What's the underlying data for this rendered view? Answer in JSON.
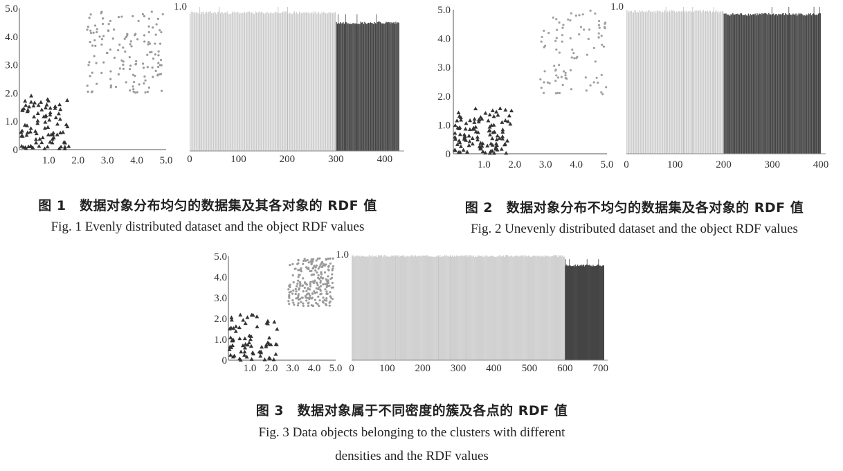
{
  "figures": [
    {
      "id": "fig1",
      "caption_cn": "图 1　数据对象分布均匀的数据集及其各对象的 RDF 值",
      "caption_en": "Fig. 1 Evenly distributed dataset and the object RDF values"
    },
    {
      "id": "fig2",
      "caption_cn": "图 2　数据对象分布不均匀的数据集及各对象的 RDF 值",
      "caption_en": "Fig. 2 Unevenly distributed dataset and the object RDF values"
    },
    {
      "id": "fig3",
      "caption_cn": "图 3　数据对象属于不同密度的簇及各点的 RDF 值",
      "caption_en_line1": "Fig. 3 Data objects belonging to the clusters with different",
      "caption_en_line2": "densities and the RDF values"
    }
  ],
  "chart_data": [
    {
      "figure": "fig1",
      "type": "scatter",
      "xlim": [
        0,
        5.0
      ],
      "ylim": [
        0,
        5.0
      ],
      "xticks": [
        "1.0",
        "2.0",
        "3.0",
        "4.0",
        "5.0"
      ],
      "yticks": [
        "0",
        "1.0",
        "2.0",
        "3.0",
        "4.0",
        "5.0"
      ],
      "clusters": [
        {
          "marker": "triangle",
          "color": "#333333",
          "count": 90,
          "x_range": [
            0.05,
            1.7
          ],
          "y_range": [
            0.0,
            1.95
          ]
        },
        {
          "marker": "dot",
          "color": "#9a9a9a",
          "count": 140,
          "x_range": [
            2.3,
            4.9
          ],
          "y_range": [
            2.0,
            4.9
          ]
        }
      ]
    },
    {
      "figure": "fig1",
      "type": "bar",
      "ylim": [
        0,
        1.0
      ],
      "yticks": [
        "1.0"
      ],
      "xticks": [
        "0",
        "100",
        "200",
        "300",
        "400"
      ],
      "xlim": [
        0,
        440
      ],
      "series": [
        {
          "x_range": [
            1,
            300
          ],
          "value": 0.96,
          "color": "#bdbdbd"
        },
        {
          "x_range": [
            301,
            430
          ],
          "value": 0.89,
          "color": "#444444"
        }
      ]
    },
    {
      "figure": "fig2",
      "type": "scatter",
      "xlim": [
        0,
        5.0
      ],
      "ylim": [
        0,
        5.0
      ],
      "xticks": [
        "1.0",
        "2.0",
        "3.0",
        "4.0",
        "5.0"
      ],
      "yticks": [
        "0",
        "1.0",
        "2.0",
        "3.0",
        "4.0",
        "5.0"
      ],
      "clusters": [
        {
          "marker": "triangle",
          "color": "#333333",
          "count": 110,
          "x_range": [
            0.05,
            1.9
          ],
          "y_range": [
            0.0,
            1.6
          ]
        },
        {
          "marker": "dot",
          "color": "#a0a0a0",
          "count": 90,
          "x_range": [
            2.8,
            5.0
          ],
          "y_range": [
            2.0,
            5.0
          ]
        }
      ]
    },
    {
      "figure": "fig2",
      "type": "bar",
      "ylim": [
        0,
        1.0
      ],
      "yticks": [
        "1.0"
      ],
      "xticks": [
        "0",
        "100",
        "200",
        "300",
        "400"
      ],
      "xlim": [
        0,
        410
      ],
      "series": [
        {
          "x_range": [
            1,
            200
          ],
          "value": 0.97,
          "color": "#bdbdbd"
        },
        {
          "x_range": [
            201,
            400
          ],
          "value": 0.95,
          "color": "#444444"
        }
      ]
    },
    {
      "figure": "fig3",
      "type": "scatter",
      "xlim": [
        0,
        5.0
      ],
      "ylim": [
        0,
        5.0
      ],
      "xticks": [
        "1.0",
        "2.0",
        "3.0",
        "4.0",
        "5.0"
      ],
      "yticks": [
        "0",
        "1.0",
        "2.0",
        "3.0",
        "4.0",
        "5.0"
      ],
      "clusters": [
        {
          "marker": "triangle",
          "color": "#333333",
          "count": 70,
          "x_range": [
            0.05,
            2.3
          ],
          "y_range": [
            0.0,
            2.2
          ]
        },
        {
          "marker": "dot",
          "color": "#9a9a9a",
          "count": 230,
          "x_range": [
            2.8,
            4.9
          ],
          "y_range": [
            2.6,
            4.9
          ]
        }
      ]
    },
    {
      "figure": "fig3",
      "type": "bar",
      "ylim": [
        0,
        1.0
      ],
      "yticks": [
        "1.0"
      ],
      "xticks": [
        "0",
        "100",
        "200",
        "300",
        "400",
        "500",
        "600",
        "700"
      ],
      "xlim": [
        0,
        720
      ],
      "series": [
        {
          "x_range": [
            1,
            600
          ],
          "value": 0.99,
          "color": "#c4c4c4"
        },
        {
          "x_range": [
            601,
            710
          ],
          "value": 0.9,
          "color": "#444444"
        }
      ]
    }
  ]
}
